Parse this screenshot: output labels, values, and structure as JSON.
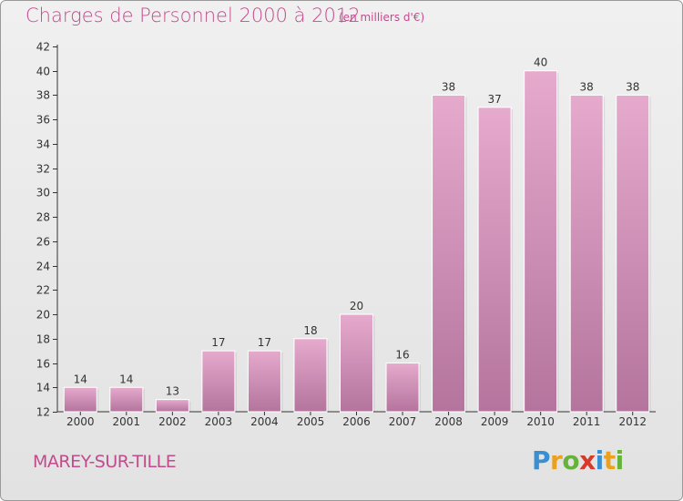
{
  "header": {
    "title": "Charges de Personnel 2000 à 2012",
    "subtitle": "(en milliers d'€)"
  },
  "footer": {
    "town": "MAREY-SUR-TILLE",
    "logo_text": "Proxiti",
    "logo_colors": [
      "#3a8fd0",
      "#e9a21f",
      "#66b23a",
      "#d83a2a",
      "#3a8fd0",
      "#e9a21f",
      "#66b23a"
    ]
  },
  "colors": {
    "bar_top": "#e6aacd",
    "bar_bottom": "#b4749d",
    "text": "#c24b8e",
    "axis": "#333333"
  },
  "chart_data": {
    "type": "bar",
    "categories": [
      "2000",
      "2001",
      "2002",
      "2003",
      "2004",
      "2005",
      "2006",
      "2007",
      "2008",
      "2009",
      "2010",
      "2011",
      "2012"
    ],
    "values": [
      14,
      14,
      13,
      17,
      17,
      18,
      20,
      16,
      38,
      37,
      40,
      38,
      38
    ],
    "ylim": [
      12,
      42
    ],
    "yticks": [
      12,
      14,
      16,
      18,
      20,
      22,
      24,
      26,
      28,
      30,
      32,
      34,
      36,
      38,
      40,
      42
    ],
    "data_labels": true,
    "grid": false,
    "title": "Charges de Personnel 2000 à 2012",
    "xlabel": "",
    "ylabel": ""
  }
}
